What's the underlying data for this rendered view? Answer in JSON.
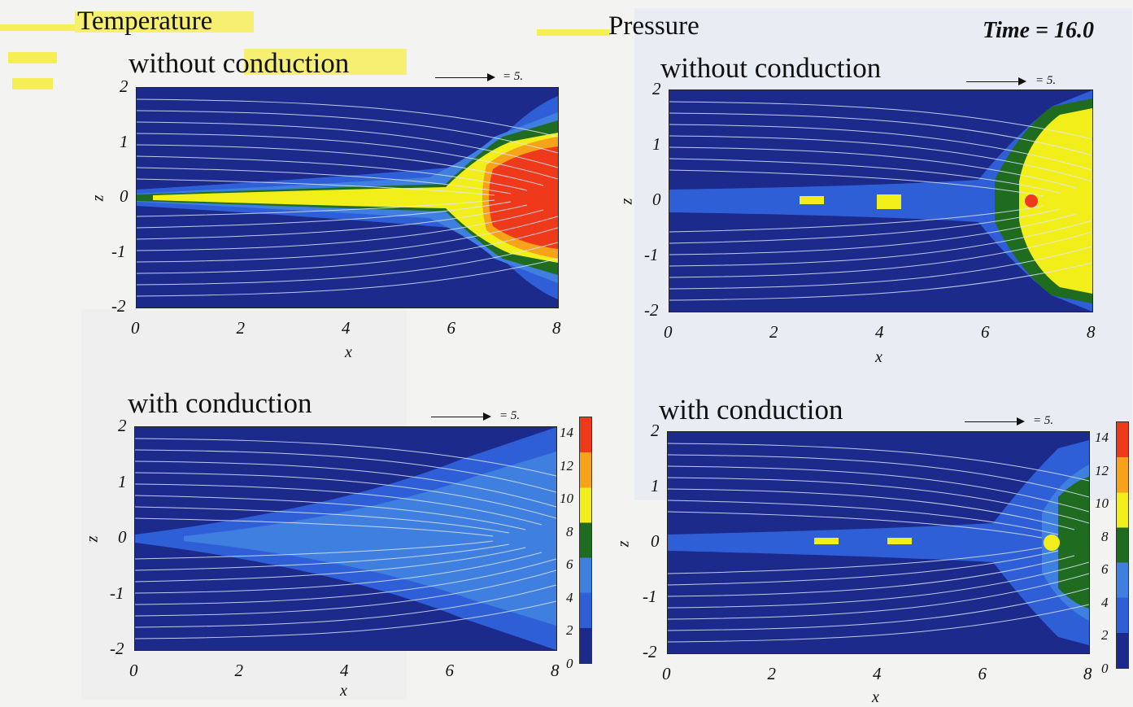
{
  "figure": {
    "time_label": "Time = 16.0",
    "quantities": [
      "Temperature",
      "Pressure"
    ],
    "panels": [
      {
        "quantity": "Temperature",
        "title": "without conduction",
        "vector_label": "= 5."
      },
      {
        "quantity": "Pressure",
        "title": "without conduction",
        "vector_label": "= 5."
      },
      {
        "quantity": "Temperature",
        "title": "with conduction",
        "vector_label": "= 5."
      },
      {
        "quantity": "Pressure",
        "title": "with conduction",
        "vector_label": "= 5."
      }
    ],
    "x_axis": {
      "label": "x",
      "ticks": [
        "0",
        "2",
        "4",
        "6",
        "8"
      ],
      "range": [
        0,
        8
      ]
    },
    "z_axis": {
      "label": "z",
      "ticks": [
        "2",
        "1",
        "0",
        "-1",
        "-2"
      ],
      "range": [
        -2,
        2
      ]
    },
    "colorbar": {
      "ticks": [
        "14",
        "12",
        "10",
        "8",
        "6",
        "4",
        "2",
        "0"
      ],
      "range": [
        0,
        15
      ],
      "colors": [
        "#1c2a8c",
        "#2f5fd6",
        "#3f7fe0",
        "#1f6b1f",
        "#f2ee1a",
        "#f6a31a",
        "#ee3a1a"
      ]
    }
  }
}
